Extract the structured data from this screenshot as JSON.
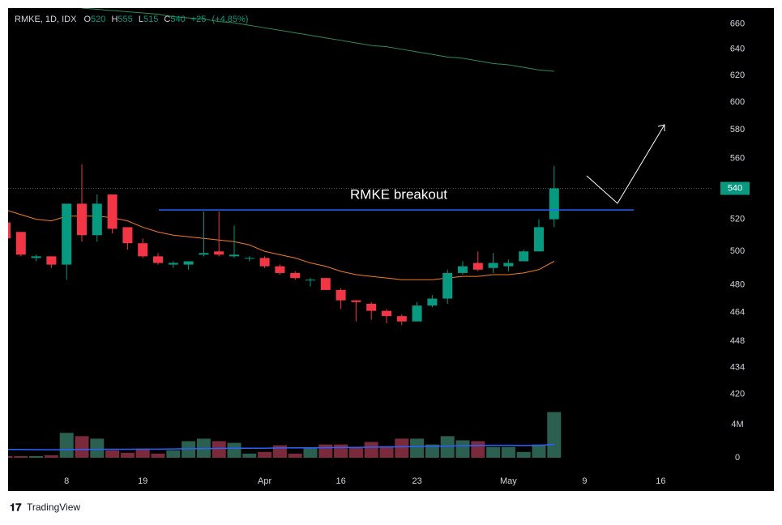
{
  "chart_data": {
    "type": "candlestick",
    "title": "RMKE, 1D, IDX",
    "ohlc_labels": [
      "O",
      "H",
      "L",
      "C"
    ],
    "change": {
      "value": 25,
      "label": "+25"
    },
    "change_pct": {
      "value": 4.85,
      "label": "(+4.85%)"
    },
    "annotation": "RMKE breakout",
    "level": 526,
    "footer": "TradingView",
    "log_scale": true,
    "up_color": "#089981",
    "down_color": "#f23645",
    "up_volume_color": "#2b5f4f",
    "down_volume_color": "#7a2a3a",
    "categories": [
      null,
      null,
      null,
      null,
      "8",
      null,
      null,
      null,
      null,
      "19",
      null,
      null,
      null,
      null,
      null,
      null,
      null,
      "Apr",
      null,
      null,
      null,
      null,
      "16",
      null,
      null,
      null,
      null,
      "23",
      null,
      null,
      null,
      null,
      null,
      "May",
      null,
      null,
      null,
      null,
      "9",
      null,
      null,
      null,
      null,
      "16",
      null,
      null,
      null
    ],
    "open": [
      518,
      512,
      496,
      497,
      492,
      530,
      510,
      536,
      515,
      505,
      497,
      492,
      492,
      498,
      500,
      497,
      496,
      496,
      491,
      487,
      483,
      484,
      477,
      471,
      469,
      465,
      462,
      459,
      468,
      472,
      487,
      493,
      490,
      491,
      494,
      500,
      520,
      null,
      null,
      null,
      null,
      null,
      null,
      null,
      null,
      null,
      null
    ],
    "high": [
      519,
      512,
      498,
      497,
      530,
      556,
      536,
      536,
      515,
      508,
      499,
      494,
      494,
      525,
      525,
      516,
      497,
      497,
      492,
      488,
      484,
      484,
      478,
      471,
      470,
      466,
      463,
      470,
      474,
      489,
      494,
      500,
      499,
      495,
      501,
      520,
      555,
      null,
      null,
      null,
      null,
      null,
      null,
      null,
      null,
      null,
      null
    ],
    "low": [
      507,
      497,
      494,
      490,
      483,
      506,
      506,
      511,
      501,
      496,
      492,
      490,
      489,
      497,
      497,
      496,
      494,
      490,
      486,
      483,
      479,
      477,
      466,
      459,
      460,
      458,
      457,
      459,
      467,
      469,
      486,
      488,
      487,
      488,
      494,
      500,
      515,
      null,
      null,
      null,
      null,
      null,
      null,
      null,
      null,
      null,
      null
    ],
    "close": [
      508,
      498,
      497,
      492,
      530,
      510,
      530,
      514,
      505,
      497,
      493,
      493,
      494,
      499,
      498,
      498,
      496,
      491,
      487,
      484,
      483,
      477,
      471,
      470,
      465,
      462,
      459,
      468,
      472,
      487,
      491,
      489,
      493,
      493,
      500,
      515,
      540,
      null,
      null,
      null,
      null,
      null,
      null,
      null,
      null,
      null,
      null
    ],
    "volume": [
      200000,
      200000,
      200000,
      300000,
      3000000,
      2600000,
      2300000,
      900000,
      600000,
      1100000,
      500000,
      900000,
      2000000,
      2300000,
      2000000,
      1800000,
      500000,
      700000,
      1500000,
      500000,
      1200000,
      1600000,
      1600000,
      1200000,
      1900000,
      1400000,
      2300000,
      2300000,
      1600000,
      2600000,
      2100000,
      2000000,
      1300000,
      1300000,
      700000,
      1600000,
      5500000,
      null,
      null,
      null,
      null,
      null,
      null,
      null,
      null,
      null,
      null
    ],
    "volume_ma": {
      "color": "#2962ff",
      "values": [
        1000000,
        1000000,
        980000,
        960000,
        980000,
        1000000,
        1020000,
        1020000,
        1030000,
        1040000,
        1040000,
        1060000,
        1080000,
        1100000,
        1120000,
        1150000,
        1150000,
        1150000,
        1180000,
        1200000,
        1200000,
        1220000,
        1240000,
        1250000,
        1280000,
        1300000,
        1320000,
        1350000,
        1380000,
        1420000,
        1450000,
        1480000,
        1500000,
        1500000,
        1480000,
        1500000,
        1600000,
        null,
        null,
        null,
        null,
        null,
        null,
        null,
        null,
        null,
        null
      ]
    },
    "lines": [
      {
        "color": "#f57c1f",
        "values": [
          526,
          523,
          520,
          519,
          522,
          522,
          522,
          521,
          519,
          515,
          512,
          510,
          509,
          508,
          507,
          506,
          504,
          500,
          498,
          496,
          493,
          491,
          488,
          486,
          485,
          484,
          483,
          483,
          483,
          484,
          485,
          485,
          486,
          486,
          487,
          489,
          494,
          null,
          null,
          null,
          null,
          null,
          null,
          null,
          null,
          null,
          null
        ]
      },
      {
        "color": "#2e8b57",
        "values": [
          null,
          null,
          null,
          null,
          null,
          673,
          672,
          671,
          670,
          669,
          668,
          666,
          665,
          664,
          662,
          661,
          659,
          657,
          655,
          653,
          651,
          649,
          647,
          645,
          643,
          642,
          640,
          638,
          636,
          634,
          633,
          631,
          629,
          628,
          626,
          624,
          623,
          null,
          null,
          null,
          null,
          null,
          null,
          null,
          null,
          null,
          null
        ]
      }
    ],
    "ylim": [
      381,
      673
    ],
    "yticks": [
      660,
      640,
      620,
      600,
      580,
      560,
      520,
      500,
      480,
      464,
      448,
      434,
      420
    ],
    "vlim": [
      0,
      14000000
    ],
    "vticks": [
      0,
      {
        "value": 4000000,
        "label": "4M"
      }
    ]
  }
}
